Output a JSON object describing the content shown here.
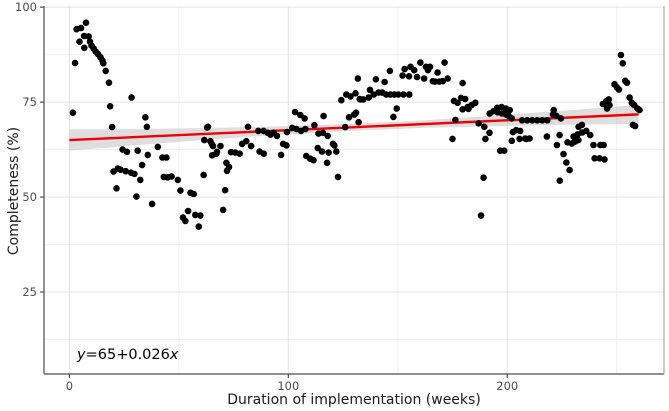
{
  "chart_data": {
    "type": "scatter",
    "title": "",
    "xlabel": "Duration of implementation (weeks)",
    "ylabel": "Completeness (%)",
    "xlim": [
      -11.6,
      271.6
    ],
    "ylim": [
      3.4,
      100.3
    ],
    "x_ticks": [
      0,
      100,
      200
    ],
    "y_ticks": [
      25,
      50,
      75,
      100
    ],
    "x_minor": [
      50,
      150,
      250
    ],
    "y_minor": [
      12.5,
      37.5,
      62.5,
      87.5
    ],
    "grid": "on",
    "legend": "none",
    "annotation": {
      "lhs": "y",
      "mid": "=65+0.026",
      "rhs": "x"
    },
    "regression": {
      "intercept": 65,
      "slope": 0.026,
      "x_range": [
        0,
        260
      ],
      "color": "#ee0000"
    },
    "ci_band": {
      "x": [
        0,
        32.5,
        65,
        97.5,
        130,
        162.5,
        195,
        227.5,
        260
      ],
      "half_width": [
        2.8,
        2.1,
        1.5,
        1.1,
        0.9,
        1.0,
        1.4,
        1.9,
        2.5
      ],
      "color": "#bdbdbd",
      "opacity": 0.5
    },
    "point_color": "#000000",
    "point_radius": 3.3,
    "colors": {
      "axis_line": "#4d4d4d",
      "tick_label": "#4d4d4d",
      "grid_major": "#e4e4e4",
      "grid_minor": "#f0f0f0"
    },
    "points": [
      [
        1.6,
        72.2
      ],
      [
        2.6,
        85.3
      ],
      [
        3.3,
        94.2
      ],
      [
        4.6,
        90.9
      ],
      [
        5.3,
        94.5
      ],
      [
        6.7,
        92.4
      ],
      [
        6.8,
        89.3
      ],
      [
        7.6,
        95.9
      ],
      [
        8.8,
        92.3
      ],
      [
        9.4,
        90.9
      ],
      [
        10.1,
        89.9
      ],
      [
        11.1,
        89.1
      ],
      [
        12.0,
        88.3
      ],
      [
        13.1,
        87.6
      ],
      [
        14.2,
        86.8
      ],
      [
        15.1,
        85.9
      ],
      [
        15.5,
        85.2
      ],
      [
        16.6,
        83.2
      ],
      [
        18.1,
        80.1
      ],
      [
        18.6,
        73.9
      ],
      [
        19.5,
        68.4
      ],
      [
        20.2,
        56.7
      ],
      [
        21.5,
        52.3
      ],
      [
        22.1,
        57.5
      ],
      [
        23.4,
        57.2
      ],
      [
        24.3,
        62.5
      ],
      [
        25.7,
        56.8
      ],
      [
        26.3,
        61.9
      ],
      [
        28.2,
        56.4
      ],
      [
        28.4,
        76.2
      ],
      [
        29.7,
        56.1
      ],
      [
        30.6,
        50.1
      ],
      [
        31.2,
        62.2
      ],
      [
        32.4,
        54.5
      ],
      [
        33.2,
        58.4
      ],
      [
        34.7,
        71.0
      ],
      [
        35.4,
        68.5
      ],
      [
        35.8,
        61.1
      ],
      [
        37.8,
        48.2
      ],
      [
        40.4,
        63.2
      ],
      [
        42.5,
        60.4
      ],
      [
        43.1,
        55.3
      ],
      [
        44.3,
        60.4
      ],
      [
        44.9,
        55.2
      ],
      [
        46.7,
        55.4
      ],
      [
        49.5,
        54.5
      ],
      [
        50.7,
        51.7
      ],
      [
        51.9,
        44.6
      ],
      [
        53.0,
        43.7
      ],
      [
        54.2,
        46.3
      ],
      [
        55.3,
        51.1
      ],
      [
        56.8,
        50.8
      ],
      [
        57.5,
        45.3
      ],
      [
        59.1,
        42.2
      ],
      [
        59.8,
        45.1
      ],
      [
        61.3,
        55.8
      ],
      [
        61.6,
        65.0
      ],
      [
        62.9,
        68.3
      ],
      [
        63.3,
        68.5
      ],
      [
        64.4,
        64.7
      ],
      [
        65.1,
        63.9
      ],
      [
        65.2,
        61.0
      ],
      [
        65.6,
        63.4
      ],
      [
        67.1,
        61.4
      ],
      [
        67.4,
        61.9
      ],
      [
        69.0,
        63.4
      ],
      [
        70.2,
        46.6
      ],
      [
        71.1,
        51.8
      ],
      [
        71.7,
        59.0
      ],
      [
        72.0,
        56.9
      ],
      [
        72.9,
        57.9
      ],
      [
        73.8,
        61.8
      ],
      [
        75.8,
        61.7
      ],
      [
        77.8,
        61.4
      ],
      [
        78.9,
        64.0
      ],
      [
        80.8,
        64.7
      ],
      [
        81.6,
        68.5
      ],
      [
        83.0,
        63.4
      ],
      [
        86.3,
        67.4
      ],
      [
        86.9,
        62.0
      ],
      [
        88.7,
        67.4
      ],
      [
        88.8,
        61.4
      ],
      [
        90.6,
        66.9
      ],
      [
        91.8,
        66.4
      ],
      [
        93.3,
        66.9
      ],
      [
        94.8,
        66.1
      ],
      [
        96.7,
        61.1
      ],
      [
        97.6,
        64.0
      ],
      [
        99.1,
        63.6
      ],
      [
        99.4,
        67.1
      ],
      [
        101.8,
        68.2
      ],
      [
        103.1,
        72.4
      ],
      [
        103.7,
        67.9
      ],
      [
        105.5,
        71.6
      ],
      [
        105.8,
        67.4
      ],
      [
        107.5,
        70.7
      ],
      [
        107.8,
        67.9
      ],
      [
        108.2,
        60.8
      ],
      [
        110.0,
        60.1
      ],
      [
        111.5,
        59.7
      ],
      [
        111.9,
        68.9
      ],
      [
        113.4,
        62.9
      ],
      [
        113.8,
        66.7
      ],
      [
        115.4,
        62.0
      ],
      [
        115.8,
        66.9
      ],
      [
        116.1,
        71.3
      ],
      [
        117.7,
        59.0
      ],
      [
        118.0,
        66.1
      ],
      [
        118.4,
        61.7
      ],
      [
        120.4,
        64.0
      ],
      [
        121.0,
        63.6
      ],
      [
        121.9,
        62.0
      ],
      [
        122.7,
        55.3
      ],
      [
        124.2,
        75.5
      ],
      [
        126.0,
        68.4
      ],
      [
        126.5,
        77.0
      ],
      [
        127.7,
        71.0
      ],
      [
        128.4,
        76.5
      ],
      [
        130.1,
        71.7
      ],
      [
        130.7,
        77.3
      ],
      [
        130.9,
        72.2
      ],
      [
        131.8,
        81.2
      ],
      [
        132.1,
        69.7
      ],
      [
        132.6,
        75.8
      ],
      [
        132.9,
        75.7
      ],
      [
        134.2,
        75.7
      ],
      [
        136.7,
        76.2
      ],
      [
        137.3,
        78.2
      ],
      [
        139.0,
        77.0
      ],
      [
        140.0,
        81.0
      ],
      [
        141.2,
        77.5
      ],
      [
        142.9,
        77.5
      ],
      [
        144.0,
        80.3
      ],
      [
        144.7,
        77.0
      ],
      [
        146.4,
        83.2
      ],
      [
        146.6,
        77.0
      ],
      [
        148.0,
        71.1
      ],
      [
        148.4,
        77.0
      ],
      [
        149.5,
        73.3
      ],
      [
        150.2,
        77.0
      ],
      [
        152.2,
        82.0
      ],
      [
        152.6,
        77.0
      ],
      [
        153.1,
        83.7
      ],
      [
        155.1,
        81.8
      ],
      [
        155.2,
        77.0
      ],
      [
        155.8,
        84.3
      ],
      [
        157.5,
        83.4
      ],
      [
        158.8,
        81.6
      ],
      [
        160.3,
        85.4
      ],
      [
        162.0,
        81.2
      ],
      [
        162.9,
        84.3
      ],
      [
        163.8,
        83.4
      ],
      [
        164.7,
        84.3
      ],
      [
        166.0,
        80.5
      ],
      [
        167.0,
        80.4
      ],
      [
        168.2,
        82.8
      ],
      [
        169.0,
        80.4
      ],
      [
        170.5,
        80.5
      ],
      [
        171.4,
        85.4
      ],
      [
        172.8,
        81.2
      ],
      [
        175.0,
        65.3
      ],
      [
        175.7,
        75.3
      ],
      [
        176.3,
        70.3
      ],
      [
        177.3,
        74.8
      ],
      [
        178.9,
        76.1
      ],
      [
        179.6,
        80.0
      ],
      [
        179.6,
        73.1
      ],
      [
        180.8,
        75.8
      ],
      [
        181.9,
        73.7
      ],
      [
        182.3,
        73.2
      ],
      [
        183.7,
        74.2
      ],
      [
        185.4,
        74.8
      ],
      [
        186.9,
        69.4
      ],
      [
        188.0,
        45.1
      ],
      [
        189.2,
        55.1
      ],
      [
        189.5,
        68.5
      ],
      [
        190.0,
        65.3
      ],
      [
        191.9,
        66.9
      ],
      [
        192.0,
        72.0
      ],
      [
        193.7,
        72.6
      ],
      [
        195.4,
        73.5
      ],
      [
        195.6,
        72.3
      ],
      [
        196.8,
        62.2
      ],
      [
        197.4,
        73.7
      ],
      [
        197.6,
        72.0
      ],
      [
        198.6,
        62.2
      ],
      [
        199.4,
        73.3
      ],
      [
        199.5,
        71.7
      ],
      [
        200.6,
        71.4
      ],
      [
        201.1,
        72.9
      ],
      [
        202.1,
        70.7
      ],
      [
        202.1,
        64.8
      ],
      [
        202.6,
        67.1
      ],
      [
        204.1,
        67.6
      ],
      [
        205.6,
        65.3
      ],
      [
        205.9,
        67.4
      ],
      [
        206.8,
        70.2
      ],
      [
        208.2,
        65.4
      ],
      [
        208.7,
        65.3
      ],
      [
        209.1,
        70.2
      ],
      [
        210.2,
        65.4
      ],
      [
        211.4,
        70.2
      ],
      [
        213.7,
        70.2
      ],
      [
        216.0,
        70.2
      ],
      [
        218.1,
        65.9
      ],
      [
        218.3,
        70.2
      ],
      [
        220.9,
        71.7
      ],
      [
        221.2,
        72.9
      ],
      [
        222.4,
        71.4
      ],
      [
        222.7,
        63.7
      ],
      [
        223.9,
        66.3
      ],
      [
        224.0,
        54.3
      ],
      [
        224.5,
        70.7
      ],
      [
        225.7,
        61.3
      ],
      [
        227.0,
        59.1
      ],
      [
        227.5,
        64.4
      ],
      [
        228.5,
        57.1
      ],
      [
        229.5,
        64.1
      ],
      [
        230.3,
        65.9
      ],
      [
        231.0,
        64.6
      ],
      [
        232.1,
        66.5
      ],
      [
        232.5,
        65.0
      ],
      [
        232.6,
        68.5
      ],
      [
        234.1,
        69.0
      ],
      [
        234.2,
        67.0
      ],
      [
        236.1,
        67.4
      ],
      [
        237.9,
        66.3
      ],
      [
        239.4,
        63.7
      ],
      [
        239.9,
        60.2
      ],
      [
        242.2,
        60.2
      ],
      [
        242.5,
        63.7
      ],
      [
        243.7,
        74.5
      ],
      [
        244.0,
        63.7
      ],
      [
        244.4,
        59.9
      ],
      [
        245.2,
        75.2
      ],
      [
        245.6,
        73.3
      ],
      [
        246.4,
        75.7
      ],
      [
        246.7,
        74.2
      ],
      [
        249.0,
        79.7
      ],
      [
        250.1,
        78.9
      ],
      [
        251.0,
        78.3
      ],
      [
        251.9,
        87.4
      ],
      [
        252.8,
        85.2
      ],
      [
        253.9,
        80.6
      ],
      [
        254.7,
        80.1
      ],
      [
        255.9,
        76.2
      ],
      [
        256.9,
        74.8
      ],
      [
        257.4,
        69.0
      ],
      [
        258.0,
        74.2
      ],
      [
        258.4,
        68.7
      ],
      [
        259.5,
        73.3
      ],
      [
        260.4,
        72.9
      ]
    ]
  }
}
